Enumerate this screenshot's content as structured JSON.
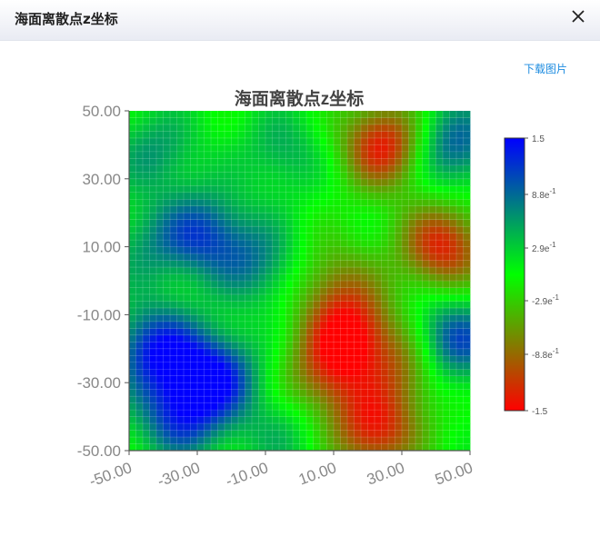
{
  "dialog": {
    "title": "海面离散点z坐标",
    "close_icon": "close-icon",
    "download_label": "下载图片"
  },
  "chart_data": {
    "type": "heatmap",
    "title": "海面离散点z坐标",
    "xlabel": "",
    "ylabel": "",
    "xlim": [
      -50,
      50
    ],
    "ylim": [
      -50,
      50
    ],
    "grid": true,
    "x_ticks": [
      "-50.00",
      "-30.00",
      "-10.00",
      "10.00",
      "30.00",
      "50.00"
    ],
    "y_ticks": [
      "50.00",
      "30.00",
      "10.00",
      "-10.00",
      "-30.00",
      "-50.00"
    ],
    "colorbar": {
      "min": -1.5,
      "max": 1.5,
      "colors": [
        "#ff0000",
        "#00ff00",
        "#0000ff"
      ],
      "ticks": [
        {
          "value": 1.5,
          "base": "1.5",
          "exp": ""
        },
        {
          "value": 0.88,
          "base": "8.8e",
          "exp": "-1"
        },
        {
          "value": 0.29,
          "base": "2.9e",
          "exp": "-1"
        },
        {
          "value": -0.29,
          "base": "-2.9e",
          "exp": "-1"
        },
        {
          "value": -0.88,
          "base": "-8.8e",
          "exp": "-1"
        },
        {
          "value": -1.5,
          "base": "-1.5",
          "exp": ""
        }
      ],
      "placement": "right"
    },
    "peaks": [
      {
        "x": -28,
        "y": 14,
        "z": 1.0
      },
      {
        "x": -42,
        "y": -20,
        "z": 1.3
      },
      {
        "x": -25,
        "y": -28,
        "z": 1.35
      },
      {
        "x": -35,
        "y": -40,
        "z": 1.1
      },
      {
        "x": 45,
        "y": 40,
        "z": 1.0
      },
      {
        "x": 45,
        "y": -18,
        "z": 1.2
      },
      {
        "x": -12,
        "y": 5,
        "z": 0.7
      },
      {
        "x": -42,
        "y": 38,
        "z": 0.6
      },
      {
        "x": -45,
        "y": 10,
        "z": 0.5
      },
      {
        "x": -5,
        "y": 38,
        "z": 0.5
      },
      {
        "x": 25,
        "y": 40,
        "z": -1.4
      },
      {
        "x": 42,
        "y": 10,
        "z": -1.3
      },
      {
        "x": 15,
        "y": -15,
        "z": -1.3
      },
      {
        "x": 22,
        "y": -44,
        "z": -1.3
      },
      {
        "x": 8,
        "y": -28,
        "z": -0.9
      },
      {
        "x": 32,
        "y": -25,
        "z": -0.8
      },
      {
        "x": 10,
        "y": 0,
        "z": -0.6
      },
      {
        "x": -5,
        "y": -45,
        "z": 0.4
      }
    ]
  }
}
